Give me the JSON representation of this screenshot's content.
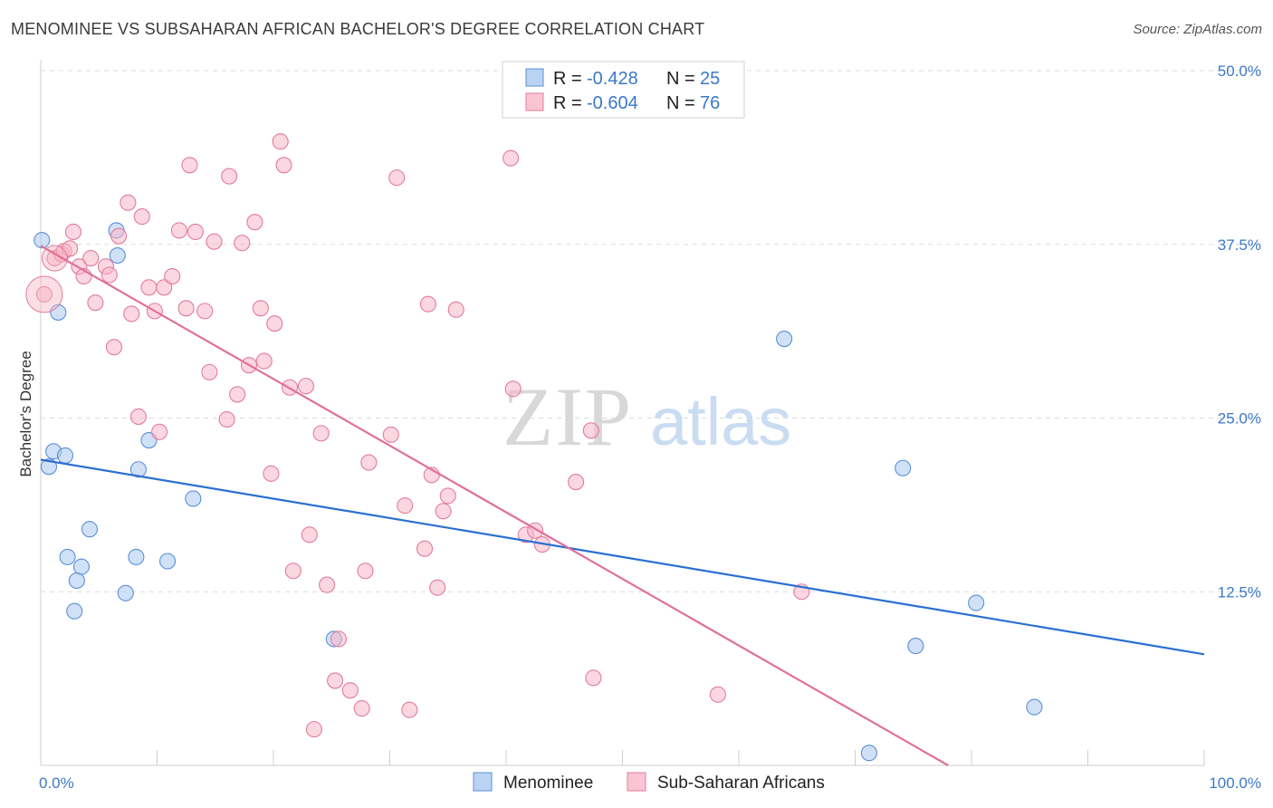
{
  "title": "MENOMINEE VS SUBSAHARAN AFRICAN BACHELOR'S DEGREE CORRELATION CHART",
  "source": "Source: ZipAtlas.com",
  "watermark": {
    "zip": "ZIP",
    "atlas": "atlas"
  },
  "legend": {
    "rows": [
      {
        "r_label": "R = ",
        "r_value": "-0.428",
        "n_label": "N = ",
        "n_value": "25",
        "color": "#a9c8f0"
      },
      {
        "r_label": "R = ",
        "r_value": "-0.604",
        "n_label": "N = ",
        "n_value": "76",
        "color": "#f7b6c8"
      }
    ]
  },
  "bottom_legend": [
    {
      "label": "Menominee",
      "color": "#a9c8f0"
    },
    {
      "label": "Sub-Saharan Africans",
      "color": "#f7b6c8"
    }
  ],
  "chart_data": {
    "type": "scatter",
    "title": "MENOMINEE VS SUBSAHARAN AFRICAN BACHELOR'S DEGREE CORRELATION CHART",
    "xlabel": "",
    "ylabel": "Bachelor's Degree",
    "xlim": [
      0,
      100
    ],
    "ylim": [
      0,
      50
    ],
    "x_tick_labels": [
      "0.0%",
      "100.0%"
    ],
    "y_ticks": [
      12.5,
      25.0,
      37.5,
      50.0
    ],
    "y_tick_labels": [
      "12.5%",
      "25.0%",
      "37.5%",
      "50.0%"
    ],
    "grid": true,
    "series": [
      {
        "name": "Menominee",
        "color": "#a9c8f0",
        "stroke": "#5b8fd6",
        "trend_color": "#2a6fd1",
        "trend": [
          [
            0,
            22.0
          ],
          [
            100,
            8.0
          ]
        ],
        "points": [
          [
            0.1,
            37.8
          ],
          [
            0.7,
            21.5
          ],
          [
            1.1,
            22.6
          ],
          [
            1.5,
            32.6
          ],
          [
            2.1,
            22.3
          ],
          [
            2.3,
            15.0
          ],
          [
            3.1,
            13.3
          ],
          [
            3.5,
            14.3
          ],
          [
            4.2,
            17.0
          ],
          [
            2.9,
            11.1
          ],
          [
            6.6,
            36.7
          ],
          [
            6.5,
            38.5
          ],
          [
            7.3,
            12.4
          ],
          [
            8.2,
            15.0
          ],
          [
            8.4,
            21.3
          ],
          [
            9.3,
            23.4
          ],
          [
            10.9,
            14.7
          ],
          [
            13.1,
            19.2
          ],
          [
            25.2,
            9.1
          ],
          [
            63.9,
            30.7
          ],
          [
            74.1,
            21.4
          ],
          [
            75.2,
            8.6
          ],
          [
            71.2,
            0.9
          ],
          [
            80.4,
            11.7
          ],
          [
            85.4,
            4.2
          ]
        ]
      },
      {
        "name": "Sub-Saharan Africans",
        "color": "#f7b6c8",
        "stroke": "#e27c9c",
        "trend_color": "#e0709a",
        "trend": [
          [
            0,
            37.4
          ],
          [
            78,
            0
          ]
        ],
        "points": [
          [
            0.3,
            33.9
          ],
          [
            1.2,
            36.5
          ],
          [
            1.8,
            36.8
          ],
          [
            2.0,
            37.0
          ],
          [
            2.5,
            37.2
          ],
          [
            2.8,
            38.4
          ],
          [
            3.3,
            35.9
          ],
          [
            3.7,
            35.2
          ],
          [
            4.3,
            36.5
          ],
          [
            4.7,
            33.3
          ],
          [
            5.6,
            35.9
          ],
          [
            5.9,
            35.3
          ],
          [
            6.3,
            30.1
          ],
          [
            6.7,
            38.1
          ],
          [
            7.5,
            40.5
          ],
          [
            7.8,
            32.5
          ],
          [
            8.4,
            25.1
          ],
          [
            8.7,
            39.5
          ],
          [
            9.3,
            34.4
          ],
          [
            9.8,
            32.7
          ],
          [
            10.2,
            24.0
          ],
          [
            10.6,
            34.4
          ],
          [
            11.3,
            35.2
          ],
          [
            11.9,
            38.5
          ],
          [
            12.5,
            32.9
          ],
          [
            12.8,
            43.2
          ],
          [
            13.3,
            38.4
          ],
          [
            14.1,
            32.7
          ],
          [
            14.5,
            28.3
          ],
          [
            14.9,
            37.7
          ],
          [
            16.0,
            24.9
          ],
          [
            16.2,
            42.4
          ],
          [
            16.9,
            26.7
          ],
          [
            17.3,
            37.6
          ],
          [
            17.9,
            28.8
          ],
          [
            18.4,
            39.1
          ],
          [
            18.9,
            32.9
          ],
          [
            19.2,
            29.1
          ],
          [
            19.8,
            21.0
          ],
          [
            20.1,
            31.8
          ],
          [
            20.6,
            44.9
          ],
          [
            20.9,
            43.2
          ],
          [
            21.4,
            27.2
          ],
          [
            21.7,
            14.0
          ],
          [
            22.8,
            27.3
          ],
          [
            23.1,
            16.6
          ],
          [
            23.5,
            2.6
          ],
          [
            24.1,
            23.9
          ],
          [
            24.6,
            13.0
          ],
          [
            25.3,
            6.1
          ],
          [
            25.6,
            9.1
          ],
          [
            26.6,
            5.4
          ],
          [
            27.6,
            4.1
          ],
          [
            27.9,
            14.0
          ],
          [
            28.2,
            21.8
          ],
          [
            30.1,
            23.8
          ],
          [
            30.6,
            42.3
          ],
          [
            31.3,
            18.7
          ],
          [
            31.7,
            4.0
          ],
          [
            33.0,
            15.6
          ],
          [
            33.3,
            33.2
          ],
          [
            33.6,
            20.9
          ],
          [
            34.1,
            12.8
          ],
          [
            34.6,
            18.3
          ],
          [
            35.0,
            19.4
          ],
          [
            35.7,
            32.8
          ],
          [
            40.4,
            43.7
          ],
          [
            40.6,
            27.1
          ],
          [
            41.7,
            16.6
          ],
          [
            42.5,
            16.9
          ],
          [
            43.1,
            15.9
          ],
          [
            46.0,
            20.4
          ],
          [
            47.3,
            24.1
          ],
          [
            47.5,
            6.3
          ],
          [
            58.2,
            5.1
          ],
          [
            65.4,
            12.5
          ]
        ]
      }
    ]
  }
}
